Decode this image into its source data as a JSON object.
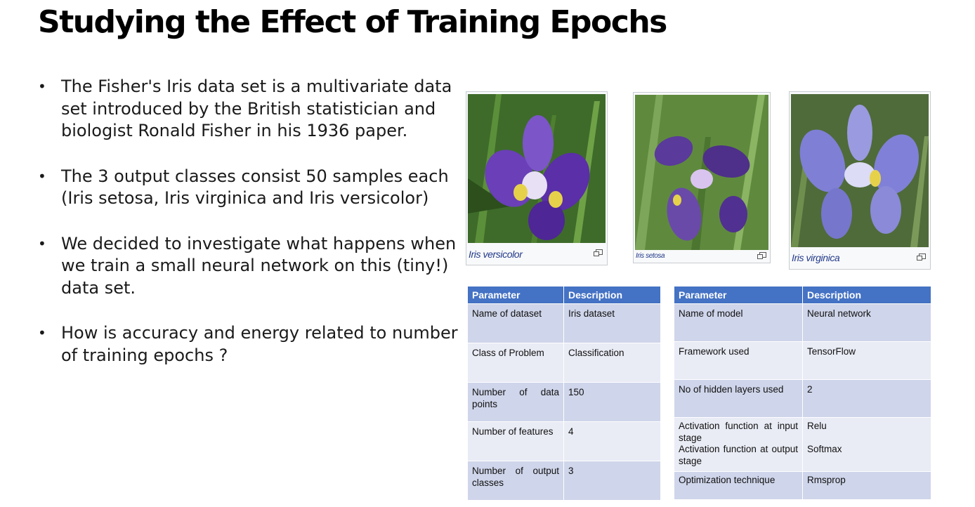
{
  "slide": {
    "title": "Studying the Effect of Training Epochs",
    "bullets": [
      "The Fisher's Iris data set is a multivariate data set introduced by the British statistician and biologist Ronald Fisher in his 1936 paper.",
      "The 3 output classes consist 50 samples each (Iris setosa, Iris virginica and Iris versicolor)",
      "We decided to investigate what happens when we train a small neural network on this (tiny!) data set.",
      "How is accuracy and energy related to number of training epochs  ?"
    ]
  },
  "figures": [
    {
      "caption": "Iris versicolor",
      "icon": "expand-icon",
      "petal_color": "#6a3fb8"
    },
    {
      "caption": "Iris setosa",
      "icon": "expand-icon",
      "petal_color": "#5a3a9a"
    },
    {
      "caption": "Iris virginica",
      "icon": "expand-icon",
      "petal_color": "#7f7fd6"
    }
  ],
  "dataset_table": {
    "headers": [
      "Parameter",
      "Description"
    ],
    "rows": [
      [
        "Name of dataset",
        "Iris dataset"
      ],
      [
        "Class of Problem",
        "Classification"
      ],
      [
        "Number of data points",
        "150"
      ],
      [
        "Number of features",
        "4"
      ],
      [
        "Number of output classes",
        "3"
      ]
    ]
  },
  "model_table": {
    "headers": [
      "Parameter",
      "Description"
    ],
    "rows": [
      [
        "Name of model",
        "Neural network"
      ],
      [
        "Framework used",
        "TensorFlow"
      ],
      [
        "No of hidden layers used",
        "2"
      ],
      [
        "Activation function at input stage",
        "Relu",
        "Activation function at output stage",
        "Softmax"
      ],
      [
        "Optimization technique",
        "Rmsprop"
      ]
    ]
  },
  "colors": {
    "table_header": "#4472c4",
    "row_odd": "#cfd5ea",
    "row_even": "#e9ebf5",
    "caption": "#223a8a"
  }
}
